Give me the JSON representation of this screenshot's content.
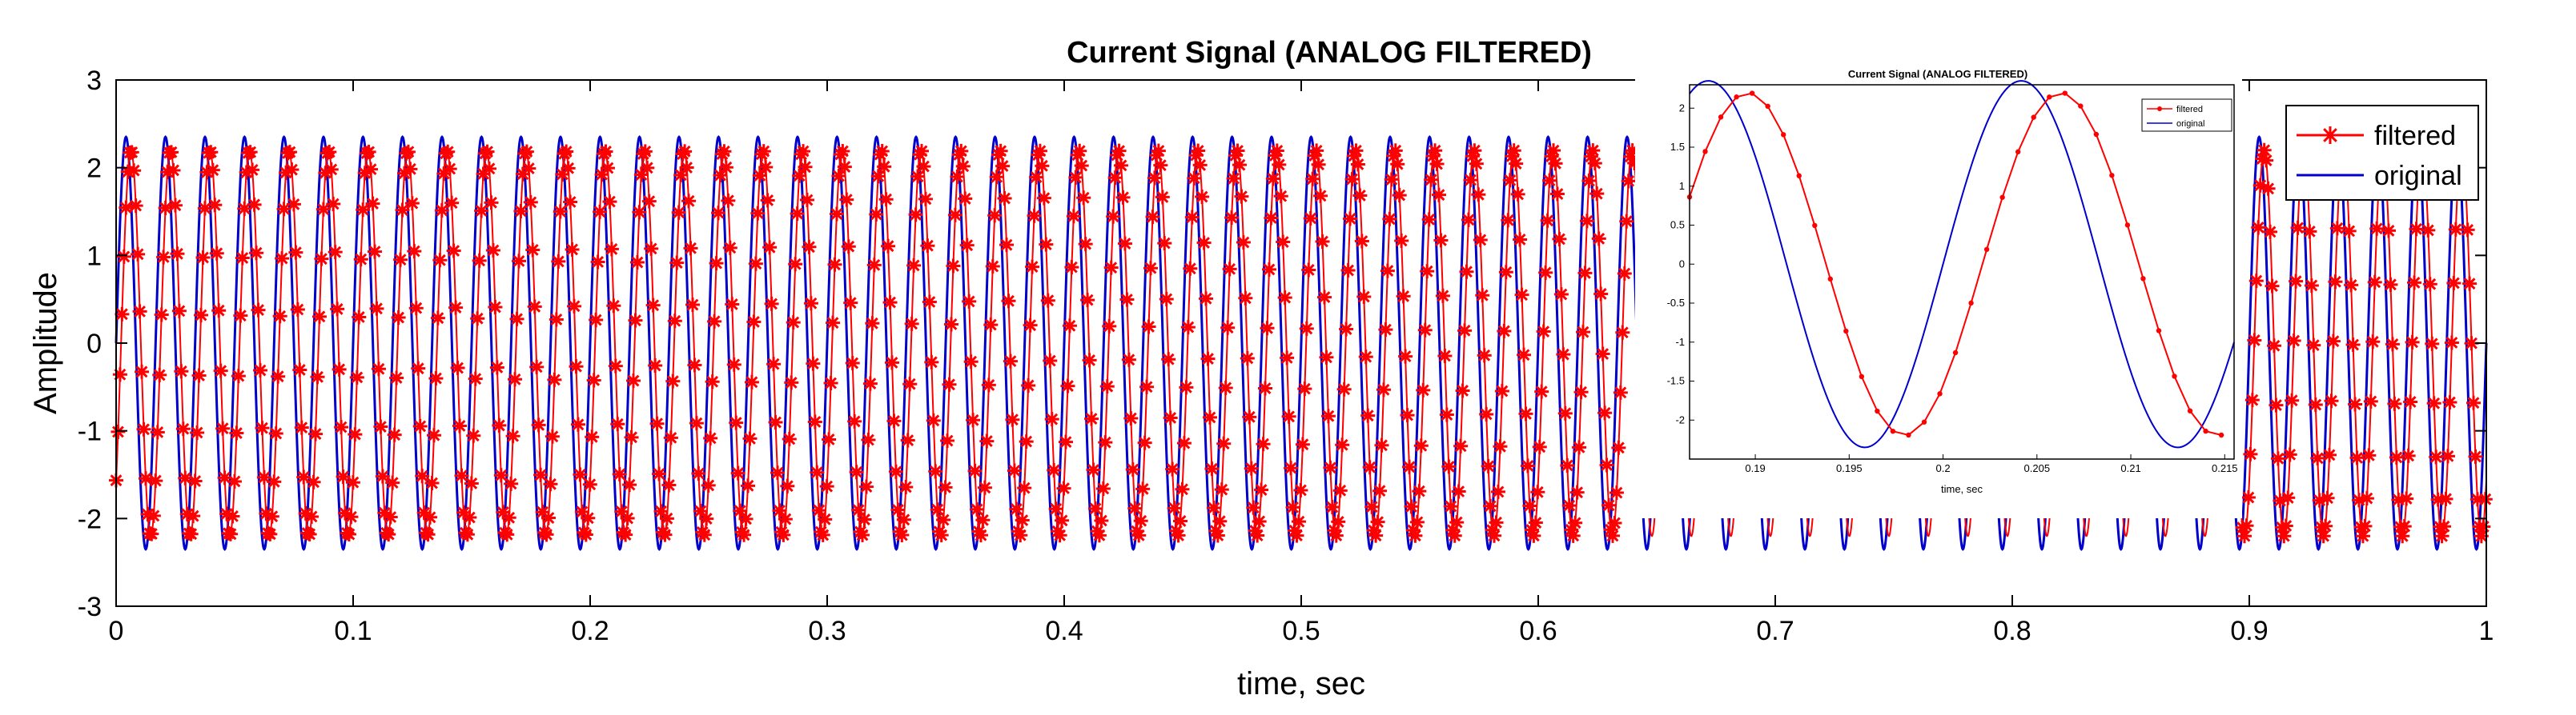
{
  "chart_data": {
    "type": "line",
    "title": "Current Signal (ANALOG FILTERED)",
    "xlabel": "time, sec",
    "ylabel": "Amplitude",
    "xlim": [
      0,
      1
    ],
    "ylim": [
      -3,
      3
    ],
    "xticks": [
      0,
      0.1,
      0.2,
      0.3,
      0.4,
      0.5,
      0.6,
      0.7,
      0.8,
      0.9,
      1
    ],
    "xtick_labels": [
      "0",
      "0.1",
      "0.2",
      "0.3",
      "0.4",
      "0.5",
      "0.6",
      "0.7",
      "0.8",
      "0.9",
      "1"
    ],
    "yticks": [
      -3,
      -2,
      -1,
      0,
      1,
      2,
      3
    ],
    "ytick_labels": [
      "-3",
      "-2",
      "-1",
      "0",
      "1",
      "2",
      "3"
    ],
    "legend": {
      "location": "top-right",
      "entries": [
        "filtered",
        "original"
      ]
    },
    "series": [
      {
        "name": "filtered",
        "color": "#ff0000",
        "marker": "asterisk",
        "frequency_hz": 60,
        "amplitude": 2.2,
        "phase_lag_sec": 0.0021,
        "sample_step_sec": 0.000833
      },
      {
        "name": "original",
        "color": "#0000cc",
        "marker": "none",
        "frequency_hz": 60,
        "amplitude": 2.35
      }
    ],
    "inset": {
      "title": "Current Signal (ANALOG FILTERED)",
      "xlabel": "time, sec",
      "xlim": [
        0.1865,
        0.2155
      ],
      "ylim": [
        -2.5,
        2.3
      ],
      "xtick_labels": [
        "0.19",
        "0.195",
        "0.2",
        "0.205",
        "0.21",
        "0.215"
      ],
      "xticks": [
        0.19,
        0.195,
        0.2,
        0.205,
        0.21,
        0.215
      ],
      "yticks": [
        2,
        1.5,
        1,
        0.5,
        0,
        -0.5,
        -1,
        -1.5,
        -2
      ],
      "ytick_labels": [
        "2",
        "1.5",
        "1",
        "0.5",
        "0",
        "-0.5",
        "-1",
        "-1.5",
        "-2"
      ],
      "legend_entries": [
        "filtered",
        "original"
      ]
    }
  }
}
